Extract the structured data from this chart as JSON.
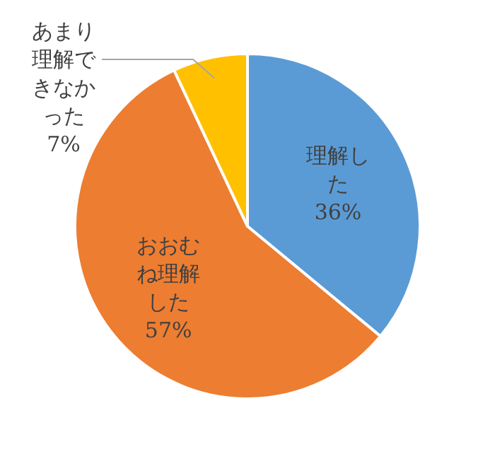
{
  "chart_data": {
    "type": "pie",
    "categories": [
      "理解した",
      "おおむね理解した",
      "あまり理解できなかった"
    ],
    "values": [
      36,
      57,
      7
    ],
    "value_labels": [
      "36%",
      "57%",
      "7%"
    ],
    "colors": [
      "#5b9bd5",
      "#ed7d31",
      "#ffc000"
    ]
  }
}
